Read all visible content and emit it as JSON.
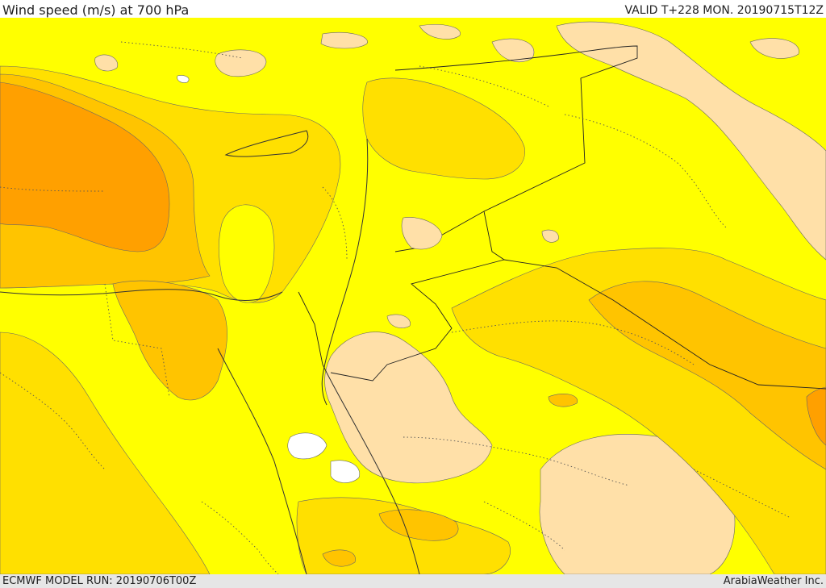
{
  "header": {
    "title": "Wind speed (m/s) at 700 hPa",
    "valid": "VALID T+228 MON. 20190715T12Z"
  },
  "footer": {
    "model_run": "ECMWF MODEL RUN: 20190706T00Z",
    "credit": "ArabiaWeather Inc."
  },
  "map": {
    "fill_colors": {
      "light": "#ffe0a8",
      "yellow": "#ffff00",
      "gold": "#ffe000",
      "amber": "#ffc400",
      "orange": "#ffa000",
      "calm": "#ffffff"
    }
  }
}
